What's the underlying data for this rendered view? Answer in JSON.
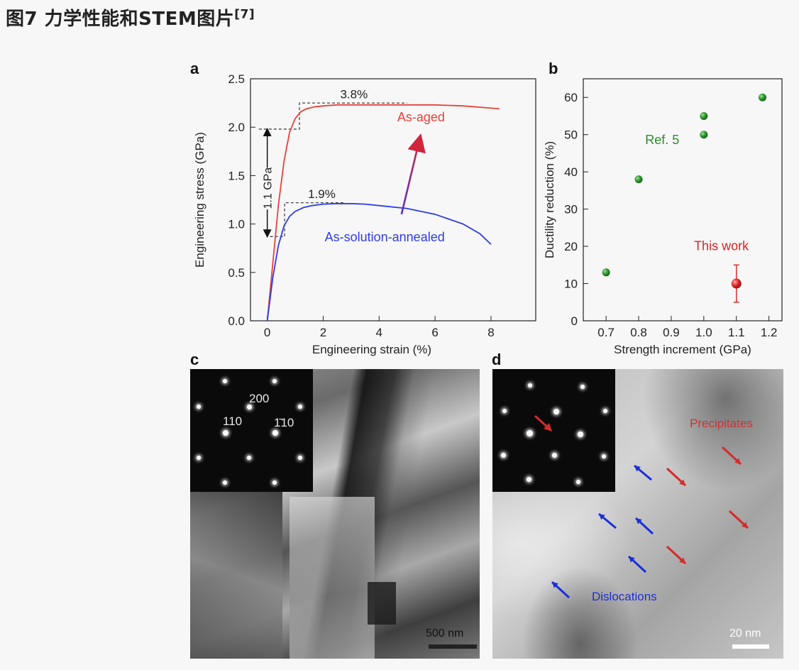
{
  "title": {
    "text": "图7 力学性能和STEM图片",
    "ref": "[7]"
  },
  "panels": {
    "a": "a",
    "b": "b",
    "c": "c",
    "d": "d"
  },
  "colors": {
    "as_aged": "#e8423a",
    "as_solution": "#2f3ce6",
    "ref5": "#2e8b2e",
    "this_work": "#e02020",
    "arrow_blue": "#1a2ed8",
    "arrow_red": "#d42a2a"
  },
  "chart_data": [
    {
      "type": "line",
      "xlabel": "Engineering strain (%)",
      "ylabel": "Engineering stress (GPa)",
      "xlim": [
        -0.6,
        9.6
      ],
      "ylim": [
        0,
        2.5
      ],
      "xticks": [
        0,
        2,
        4,
        6,
        8
      ],
      "yticks": [
        0.0,
        0.5,
        1.0,
        1.5,
        2.0,
        2.5
      ],
      "ytick_labels": [
        "0.0",
        "0.5",
        "1.0",
        "1.5",
        "2.0",
        "2.5"
      ],
      "series": [
        {
          "name": "As-aged",
          "color": "#e8423a",
          "x": [
            0,
            0.2,
            0.4,
            0.6,
            0.8,
            1.0,
            1.2,
            1.4,
            1.7,
            2.0,
            2.5,
            3.0,
            4.0,
            5.0,
            6.0,
            7.0,
            8.3
          ],
          "y": [
            0,
            0.6,
            1.2,
            1.65,
            1.95,
            2.09,
            2.16,
            2.19,
            2.21,
            2.22,
            2.23,
            2.23,
            2.23,
            2.23,
            2.23,
            2.22,
            2.19
          ]
        },
        {
          "name": "As-solution-annealed",
          "color": "#2f3ce6",
          "x": [
            0,
            0.2,
            0.4,
            0.6,
            0.8,
            1.0,
            1.3,
            1.6,
            2.0,
            2.5,
            3.0,
            3.5,
            4.0,
            5.0,
            6.0,
            7.0,
            7.6,
            8.0
          ],
          "y": [
            0,
            0.45,
            0.78,
            0.98,
            1.08,
            1.13,
            1.17,
            1.19,
            1.205,
            1.21,
            1.21,
            1.205,
            1.19,
            1.16,
            1.1,
            1.0,
            0.9,
            0.79
          ]
        }
      ],
      "annotations": {
        "aged_pct": "3.8%",
        "solution_pct": "1.9%",
        "delta": "1.1 GPa"
      }
    },
    {
      "type": "scatter",
      "xlabel": "Strength increment (GPa)",
      "ylabel": "Ductility reduction (%)",
      "xlim": [
        0.63,
        1.24
      ],
      "ylim": [
        0,
        65
      ],
      "xticks": [
        0.7,
        0.8,
        0.9,
        1.0,
        1.1,
        1.2
      ],
      "yticks": [
        0,
        10,
        20,
        30,
        40,
        50,
        60
      ],
      "series": [
        {
          "name": "Ref. 5",
          "color": "#2e8b2e",
          "x": [
            0.7,
            0.8,
            1.0,
            1.0,
            1.18
          ],
          "y": [
            13,
            38,
            50,
            55,
            60
          ]
        },
        {
          "name": "This work",
          "color": "#e02020",
          "x": [
            1.1
          ],
          "y": [
            10
          ],
          "yerr": [
            5
          ]
        }
      ]
    }
  ],
  "panel_c": {
    "inset_labels": [
      "200",
      "110",
      "1̄10"
    ],
    "scale": "500 nm"
  },
  "panel_d": {
    "labels": {
      "precipitates": "Precipitates",
      "dislocations": "Dislocations"
    },
    "scale": "20 nm"
  }
}
